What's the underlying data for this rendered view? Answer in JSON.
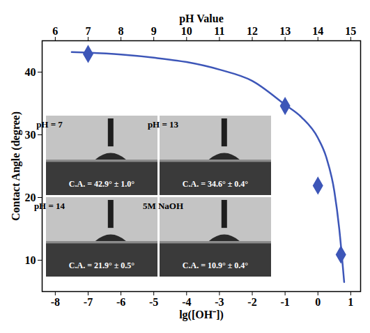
{
  "chart_data": {
    "type": "scatter",
    "x_label": "lg([OH⁻])",
    "x2_label": "pH Value",
    "y_label": "Contact Angle (degree)",
    "xlim": [
      -8.4,
      1.3
    ],
    "xticks": [
      -8,
      -7,
      -6,
      -5,
      -4,
      -3,
      -2,
      -1,
      0,
      1
    ],
    "x2lim": [
      5.6,
      15.3
    ],
    "x2ticks": [
      6,
      7,
      8,
      9,
      10,
      11,
      12,
      13,
      14,
      15
    ],
    "ylim": [
      5,
      45
    ],
    "yticks": [
      10,
      20,
      30,
      40
    ],
    "grid": false,
    "series": [
      {
        "type": "scatter",
        "marker": "diamond",
        "color": "#3d56b8",
        "x": [
          -7,
          -1,
          0,
          0.7
        ],
        "values": [
          42.9,
          34.6,
          21.9,
          10.9
        ]
      },
      {
        "type": "line",
        "line_style": "solid",
        "color": "#3d56b8",
        "x": [
          -7.5,
          -7,
          -6,
          -5,
          -4,
          -3,
          -2,
          -1,
          -0.5,
          0,
          0.25,
          0.5,
          0.65,
          0.75,
          0.8
        ],
        "values": [
          43.2,
          43.1,
          42.8,
          42.3,
          41.6,
          40.4,
          38.6,
          34.8,
          32.8,
          29.5,
          26.5,
          21,
          15,
          9.5,
          6.5
        ]
      }
    ],
    "insets": [
      {
        "label": "pH = 7",
        "text": "C.A. = 42.9° ± 1.0°"
      },
      {
        "label": "pH = 13",
        "text": "C.A. = 34.6° ± 0.4°"
      },
      {
        "label": "pH = 14",
        "text": "C.A. = 21.9° ± 0.5°"
      },
      {
        "label": "5M NaOH",
        "text": "C.A. = 10.9° ± 0.4°"
      }
    ]
  }
}
